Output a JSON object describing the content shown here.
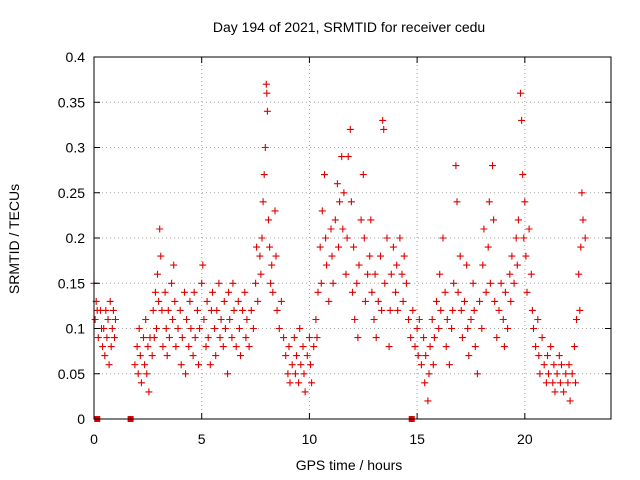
{
  "chart_data": {
    "type": "scatter",
    "title": "Day 194 of 2021, SRMTID for receiver cedu",
    "xlabel": "GPS time / hours",
    "ylabel": "SRMTID / TECUs",
    "xlim": [
      0,
      24
    ],
    "ylim": [
      0,
      0.4
    ],
    "grid": true,
    "legend": "none",
    "marker": "+",
    "color": "#e00000",
    "x_ticks": [
      0,
      5,
      10,
      15,
      20
    ],
    "x_tick_labels": [
      "0",
      "5",
      "10",
      "15",
      "20"
    ],
    "y_ticks": [
      0,
      0.05,
      0.1,
      0.15,
      0.2,
      0.25,
      0.3,
      0.35,
      0.4
    ],
    "y_tick_labels": [
      "0",
      "0.05",
      "0.1",
      "0.15",
      "0.2",
      "0.25",
      "0.3",
      "0.35",
      "0.4"
    ],
    "zero_value_markers_x": [
      0.15,
      1.7,
      14.75
    ],
    "points": [
      [
        0.0,
        0.15
      ],
      [
        0.05,
        0.11
      ],
      [
        0.1,
        0.13
      ],
      [
        0.15,
        0.12
      ],
      [
        0.2,
        0.09
      ],
      [
        0.3,
        0.12
      ],
      [
        0.35,
        0.1
      ],
      [
        0.4,
        0.08
      ],
      [
        0.45,
        0.1
      ],
      [
        0.5,
        0.07
      ],
      [
        0.55,
        0.12
      ],
      [
        0.6,
        0.09
      ],
      [
        0.65,
        0.11
      ],
      [
        0.7,
        0.06
      ],
      [
        0.75,
        0.13
      ],
      [
        0.8,
        0.08
      ],
      [
        0.85,
        0.1
      ],
      [
        0.9,
        0.12
      ],
      [
        0.95,
        0.09
      ],
      [
        1.0,
        0.11
      ],
      [
        1.9,
        0.06
      ],
      [
        2.0,
        0.08
      ],
      [
        2.05,
        0.05
      ],
      [
        2.1,
        0.1
      ],
      [
        2.15,
        0.07
      ],
      [
        2.2,
        0.04
      ],
      [
        2.3,
        0.09
      ],
      [
        2.35,
        0.06
      ],
      [
        2.4,
        0.11
      ],
      [
        2.45,
        0.05
      ],
      [
        2.5,
        0.08
      ],
      [
        2.55,
        0.03
      ],
      [
        2.6,
        0.09
      ],
      [
        2.7,
        0.07
      ],
      [
        2.75,
        0.12
      ],
      [
        2.8,
        0.09
      ],
      [
        2.85,
        0.14
      ],
      [
        2.9,
        0.1
      ],
      [
        2.95,
        0.16
      ],
      [
        3.0,
        0.13
      ],
      [
        3.05,
        0.21
      ],
      [
        3.1,
        0.18
      ],
      [
        3.15,
        0.12
      ],
      [
        3.2,
        0.08
      ],
      [
        3.3,
        0.14
      ],
      [
        3.35,
        0.1
      ],
      [
        3.4,
        0.07
      ],
      [
        3.45,
        0.12
      ],
      [
        3.5,
        0.09
      ],
      [
        3.6,
        0.15
      ],
      [
        3.65,
        0.11
      ],
      [
        3.7,
        0.17
      ],
      [
        3.75,
        0.13
      ],
      [
        3.8,
        0.08
      ],
      [
        3.9,
        0.1
      ],
      [
        4.0,
        0.12
      ],
      [
        4.05,
        0.06
      ],
      [
        4.1,
        0.09
      ],
      [
        4.2,
        0.14
      ],
      [
        4.25,
        0.05
      ],
      [
        4.3,
        0.11
      ],
      [
        4.4,
        0.08
      ],
      [
        4.45,
        0.13
      ],
      [
        4.5,
        0.1
      ],
      [
        4.6,
        0.07
      ],
      [
        4.65,
        0.14
      ],
      [
        4.7,
        0.09
      ],
      [
        4.8,
        0.12
      ],
      [
        4.85,
        0.06
      ],
      [
        4.9,
        0.1
      ],
      [
        5.0,
        0.15
      ],
      [
        5.05,
        0.17
      ],
      [
        5.1,
        0.11
      ],
      [
        5.2,
        0.08
      ],
      [
        5.25,
        0.13
      ],
      [
        5.3,
        0.09
      ],
      [
        5.4,
        0.06
      ],
      [
        5.45,
        0.12
      ],
      [
        5.5,
        0.14
      ],
      [
        5.6,
        0.1
      ],
      [
        5.65,
        0.07
      ],
      [
        5.7,
        0.12
      ],
      [
        5.8,
        0.15
      ],
      [
        5.85,
        0.09
      ],
      [
        5.9,
        0.11
      ],
      [
        6.0,
        0.08
      ],
      [
        6.05,
        0.13
      ],
      [
        6.1,
        0.1
      ],
      [
        6.2,
        0.05
      ],
      [
        6.25,
        0.14
      ],
      [
        6.3,
        0.11
      ],
      [
        6.4,
        0.09
      ],
      [
        6.45,
        0.15
      ],
      [
        6.5,
        0.12
      ],
      [
        6.6,
        0.08
      ],
      [
        6.7,
        0.13
      ],
      [
        6.75,
        0.1
      ],
      [
        6.8,
        0.07
      ],
      [
        6.9,
        0.12
      ],
      [
        7.0,
        0.14
      ],
      [
        7.05,
        0.09
      ],
      [
        7.1,
        0.11
      ],
      [
        7.2,
        0.08
      ],
      [
        7.3,
        0.12
      ],
      [
        7.4,
        0.1
      ],
      [
        7.5,
        0.15
      ],
      [
        7.55,
        0.19
      ],
      [
        7.6,
        0.13
      ],
      [
        7.7,
        0.18
      ],
      [
        7.75,
        0.16
      ],
      [
        7.8,
        0.2
      ],
      [
        7.85,
        0.24
      ],
      [
        7.9,
        0.27
      ],
      [
        7.95,
        0.3
      ],
      [
        8.0,
        0.37
      ],
      [
        8.02,
        0.36
      ],
      [
        8.05,
        0.34
      ],
      [
        8.1,
        0.22
      ],
      [
        8.15,
        0.19
      ],
      [
        8.2,
        0.15
      ],
      [
        8.25,
        0.17
      ],
      [
        8.3,
        0.14
      ],
      [
        8.4,
        0.23
      ],
      [
        8.45,
        0.18
      ],
      [
        8.5,
        0.12
      ],
      [
        8.6,
        0.1
      ],
      [
        8.7,
        0.13
      ],
      [
        8.8,
        0.09
      ],
      [
        8.9,
        0.07
      ],
      [
        9.0,
        0.05
      ],
      [
        9.05,
        0.08
      ],
      [
        9.1,
        0.04
      ],
      [
        9.2,
        0.06
      ],
      [
        9.3,
        0.09
      ],
      [
        9.35,
        0.05
      ],
      [
        9.4,
        0.07
      ],
      [
        9.5,
        0.04
      ],
      [
        9.55,
        0.1
      ],
      [
        9.6,
        0.06
      ],
      [
        9.7,
        0.08
      ],
      [
        9.75,
        0.05
      ],
      [
        9.8,
        0.03
      ],
      [
        9.9,
        0.07
      ],
      [
        10.0,
        0.09
      ],
      [
        10.05,
        0.06
      ],
      [
        10.1,
        0.04
      ],
      [
        10.2,
        0.08
      ],
      [
        10.3,
        0.11
      ],
      [
        10.35,
        0.09
      ],
      [
        10.4,
        0.14
      ],
      [
        10.5,
        0.19
      ],
      [
        10.55,
        0.15
      ],
      [
        10.6,
        0.23
      ],
      [
        10.7,
        0.27
      ],
      [
        10.75,
        0.2
      ],
      [
        10.8,
        0.17
      ],
      [
        10.9,
        0.13
      ],
      [
        11.0,
        0.21
      ],
      [
        11.05,
        0.18
      ],
      [
        11.1,
        0.15
      ],
      [
        11.2,
        0.22
      ],
      [
        11.3,
        0.26
      ],
      [
        11.35,
        0.19
      ],
      [
        11.4,
        0.24
      ],
      [
        11.5,
        0.29
      ],
      [
        11.55,
        0.21
      ],
      [
        11.6,
        0.25
      ],
      [
        11.7,
        0.16
      ],
      [
        11.75,
        0.2
      ],
      [
        11.8,
        0.29
      ],
      [
        11.9,
        0.32
      ],
      [
        11.95,
        0.24
      ],
      [
        12.0,
        0.14
      ],
      [
        12.05,
        0.19
      ],
      [
        12.1,
        0.11
      ],
      [
        12.2,
        0.15
      ],
      [
        12.25,
        0.09
      ],
      [
        12.3,
        0.17
      ],
      [
        12.4,
        0.22
      ],
      [
        12.5,
        0.27
      ],
      [
        12.55,
        0.2
      ],
      [
        12.6,
        0.13
      ],
      [
        12.7,
        0.16
      ],
      [
        12.8,
        0.18
      ],
      [
        12.85,
        0.22
      ],
      [
        12.9,
        0.14
      ],
      [
        13.0,
        0.11
      ],
      [
        13.05,
        0.16
      ],
      [
        13.1,
        0.09
      ],
      [
        13.2,
        0.13
      ],
      [
        13.3,
        0.18
      ],
      [
        13.35,
        0.12
      ],
      [
        13.4,
        0.33
      ],
      [
        13.45,
        0.32
      ],
      [
        13.5,
        0.15
      ],
      [
        13.6,
        0.2
      ],
      [
        13.7,
        0.08
      ],
      [
        13.75,
        0.12
      ],
      [
        13.8,
        0.16
      ],
      [
        13.9,
        0.19
      ],
      [
        14.0,
        0.14
      ],
      [
        14.05,
        0.17
      ],
      [
        14.1,
        0.12
      ],
      [
        14.2,
        0.2
      ],
      [
        14.3,
        0.16
      ],
      [
        14.35,
        0.13
      ],
      [
        14.4,
        0.18
      ],
      [
        14.5,
        0.15
      ],
      [
        14.6,
        0.11
      ],
      [
        14.7,
        0.09
      ],
      [
        14.8,
        0.12
      ],
      [
        14.9,
        0.08
      ],
      [
        15.0,
        0.1
      ],
      [
        15.05,
        0.07
      ],
      [
        15.1,
        0.11
      ],
      [
        15.2,
        0.06
      ],
      [
        15.3,
        0.09
      ],
      [
        15.35,
        0.04
      ],
      [
        15.4,
        0.07
      ],
      [
        15.5,
        0.02
      ],
      [
        15.55,
        0.05
      ],
      [
        15.6,
        0.08
      ],
      [
        15.7,
        0.11
      ],
      [
        15.75,
        0.06
      ],
      [
        15.8,
        0.09
      ],
      [
        15.9,
        0.13
      ],
      [
        16.0,
        0.1
      ],
      [
        16.05,
        0.16
      ],
      [
        16.1,
        0.12
      ],
      [
        16.2,
        0.2
      ],
      [
        16.3,
        0.14
      ],
      [
        16.35,
        0.08
      ],
      [
        16.4,
        0.11
      ],
      [
        16.5,
        0.06
      ],
      [
        16.6,
        0.1
      ],
      [
        16.65,
        0.12
      ],
      [
        16.7,
        0.15
      ],
      [
        16.8,
        0.28
      ],
      [
        16.85,
        0.24
      ],
      [
        16.9,
        0.14
      ],
      [
        17.0,
        0.18
      ],
      [
        17.05,
        0.12
      ],
      [
        17.1,
        0.09
      ],
      [
        17.2,
        0.13
      ],
      [
        17.3,
        0.17
      ],
      [
        17.35,
        0.1
      ],
      [
        17.4,
        0.07
      ],
      [
        17.5,
        0.11
      ],
      [
        17.6,
        0.15
      ],
      [
        17.65,
        0.12
      ],
      [
        17.7,
        0.08
      ],
      [
        17.8,
        0.05
      ],
      [
        17.9,
        0.13
      ],
      [
        18.0,
        0.1
      ],
      [
        18.05,
        0.17
      ],
      [
        18.1,
        0.21
      ],
      [
        18.2,
        0.14
      ],
      [
        18.3,
        0.19
      ],
      [
        18.35,
        0.24
      ],
      [
        18.4,
        0.15
      ],
      [
        18.5,
        0.28
      ],
      [
        18.55,
        0.22
      ],
      [
        18.6,
        0.13
      ],
      [
        18.7,
        0.09
      ],
      [
        18.8,
        0.12
      ],
      [
        18.9,
        0.15
      ],
      [
        19.0,
        0.11
      ],
      [
        19.05,
        0.08
      ],
      [
        19.1,
        0.14
      ],
      [
        19.2,
        0.1
      ],
      [
        19.3,
        0.16
      ],
      [
        19.35,
        0.13
      ],
      [
        19.4,
        0.18
      ],
      [
        19.5,
        0.15
      ],
      [
        19.6,
        0.2
      ],
      [
        19.65,
        0.17
      ],
      [
        19.7,
        0.22
      ],
      [
        19.8,
        0.36
      ],
      [
        19.85,
        0.33
      ],
      [
        19.9,
        0.27
      ],
      [
        19.95,
        0.2
      ],
      [
        20.0,
        0.24
      ],
      [
        20.05,
        0.18
      ],
      [
        20.1,
        0.14
      ],
      [
        20.2,
        0.21
      ],
      [
        20.3,
        0.16
      ],
      [
        20.35,
        0.12
      ],
      [
        20.4,
        0.1
      ],
      [
        20.5,
        0.08
      ],
      [
        20.6,
        0.11
      ],
      [
        20.65,
        0.07
      ],
      [
        20.7,
        0.05
      ],
      [
        20.8,
        0.09
      ],
      [
        20.9,
        0.06
      ],
      [
        21.0,
        0.04
      ],
      [
        21.05,
        0.07
      ],
      [
        21.1,
        0.05
      ],
      [
        21.2,
        0.08
      ],
      [
        21.3,
        0.04
      ],
      [
        21.35,
        0.06
      ],
      [
        21.4,
        0.03
      ],
      [
        21.5,
        0.05
      ],
      [
        21.6,
        0.07
      ],
      [
        21.65,
        0.04
      ],
      [
        21.7,
        0.06
      ],
      [
        21.8,
        0.03
      ],
      [
        21.9,
        0.05
      ],
      [
        22.0,
        0.04
      ],
      [
        22.05,
        0.06
      ],
      [
        22.1,
        0.02
      ],
      [
        22.2,
        0.05
      ],
      [
        22.3,
        0.08
      ],
      [
        22.35,
        0.04
      ],
      [
        22.4,
        0.11
      ],
      [
        22.5,
        0.16
      ],
      [
        22.55,
        0.12
      ],
      [
        22.6,
        0.19
      ],
      [
        22.65,
        0.25
      ],
      [
        22.7,
        0.22
      ],
      [
        22.8,
        0.2
      ]
    ]
  }
}
